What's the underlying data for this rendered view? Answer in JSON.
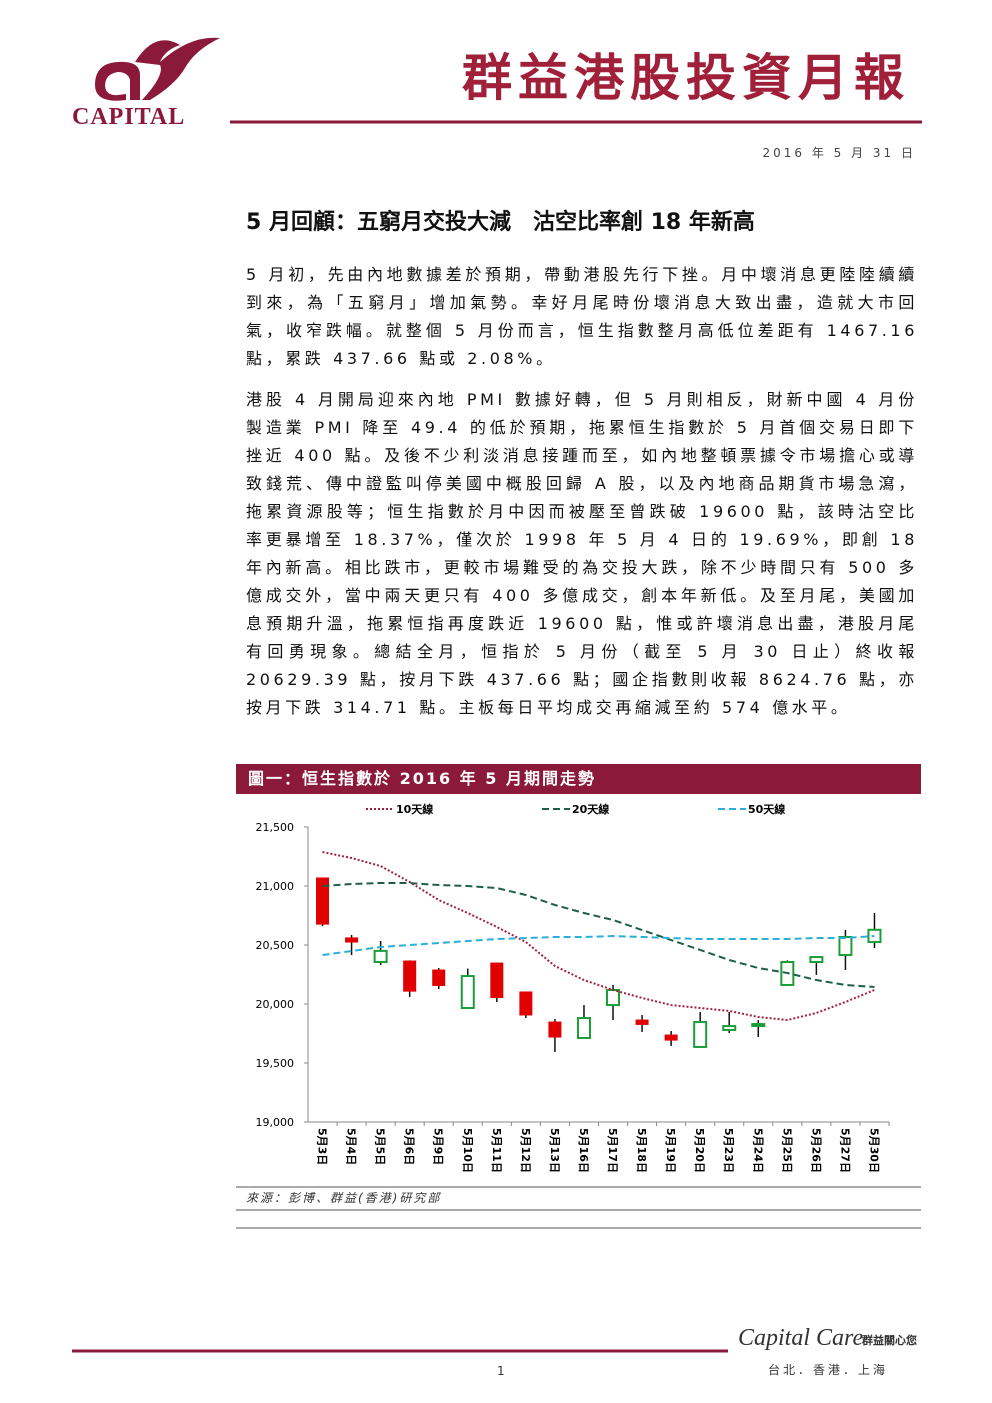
{
  "header": {
    "brand": "CAPITAL",
    "title": "群益港股投資月報",
    "date": "2016 年 5 月 31 日"
  },
  "article": {
    "title": "5 月回顧：五窮月交投大減　沽空比率創 18 年新高",
    "paragraphs": [
      "5 月初，先由內地數據差於預期，帶動港股先行下挫。月中壞消息更陸陸續續到來，為「五窮月」增加氣勢。幸好月尾時份壞消息大致出盡，造就大市回氣，收窄跌幅。就整個 5 月份而言，恒生指數整月高低位差距有 1467.16 點，累跌 437.66 點或 2.08%。",
      "港股 4 月開局迎來內地 PMI 數據好轉，但 5 月則相反，財新中國 4 月份製造業 PMI 降至 49.4 的低於預期，拖累恒生指數於 5 月首個交易日即下挫近 400 點。及後不少利淡消息接踵而至，如內地整頓票據令市場擔心或導致錢荒、傳中證監叫停美國中概股回歸 A 股，以及內地商品期貨市場急瀉，拖累資源股等；恒生指數於月中因而被壓至曾跌破 19600 點，該時沽空比率更暴增至 18.37%，僅次於 1998 年 5 月 4 日的 19.69%，即創 18 年內新高。相比跌市，更較市場難受的為交投大跌，除不少時間只有 500 多億成交外，當中兩天更只有 400 多億成交，創本年新低。及至月尾，美國加息預期升溫，拖累恒指再度跌近 19600 點，惟或許壞消息出盡，港股月尾有回勇現象。總結全月，恒指於 5 月份（截至 5 月 30 日止）終收報 20629.39 點，按月下跌 437.66 點；國企指數則收報 8624.76 點，亦按月下跌 314.71 點。主板每日平均成交再縮減至約 574 億水平。"
    ]
  },
  "chart_data": {
    "type": "candlestick",
    "title": "圖一：恒生指數於 2016 年 5 月期間走勢",
    "categories": [
      "5月3日",
      "5月4日",
      "5月5日",
      "5月6日",
      "5月9日",
      "5月10日",
      "5月11日",
      "5月12日",
      "5月13日",
      "5月16日",
      "5月17日",
      "5月18日",
      "5月19日",
      "5月20日",
      "5月23日",
      "5月24日",
      "5月25日",
      "5月26日",
      "5月27日",
      "5月30日"
    ],
    "open": [
      21068,
      20560,
      20356,
      20364,
      20288,
      19966,
      20347,
      20102,
      19847,
      19712,
      19991,
      19864,
      19737,
      19636,
      19780,
      19822,
      20161,
      20356,
      20415,
      20525
    ],
    "high": [
      21070,
      20585,
      20534,
      20370,
      20305,
      20300,
      20350,
      20105,
      19873,
      19991,
      20161,
      19907,
      19771,
      19932,
      19932,
      19864,
      20370,
      20400,
      20627,
      20771
    ],
    "low": [
      20660,
      20415,
      20330,
      20060,
      20127,
      19960,
      20017,
      19881,
      19593,
      19710,
      19864,
      19763,
      19644,
      19630,
      19754,
      19720,
      20155,
      20246,
      20288,
      20474
    ],
    "close": [
      20677,
      20525,
      20450,
      20109,
      20157,
      20237,
      20055,
      19907,
      19720,
      19881,
      20119,
      19827,
      19694,
      19847,
      19813,
      19830,
      20356,
      20398,
      20568,
      20629
    ],
    "up_color": "#1a9e3a",
    "down_color": "#e00000",
    "series": [
      {
        "name": "10天線",
        "color": "#a0203a",
        "style": "dotted",
        "values": [
          21288,
          21237,
          21169,
          21034,
          20881,
          20771,
          20653,
          20525,
          20322,
          20203,
          20119,
          20051,
          19991,
          19966,
          19941,
          19890,
          19864,
          19924,
          20017,
          20119
        ]
      },
      {
        "name": "20天線",
        "color": "#1f5f4a",
        "style": "dashed",
        "values": [
          21000,
          21017,
          21025,
          21025,
          21008,
          21000,
          20983,
          20924,
          20839,
          20771,
          20712,
          20627,
          20542,
          20458,
          20373,
          20305,
          20263,
          20203,
          20161,
          20144
        ]
      },
      {
        "name": "50天線",
        "color": "#2ab0d8",
        "style": "dashed",
        "values": [
          20415,
          20449,
          20483,
          20500,
          20517,
          20534,
          20551,
          20559,
          20568,
          20568,
          20576,
          20568,
          20559,
          20551,
          20551,
          20551,
          20551,
          20559,
          20559,
          20576
        ]
      }
    ],
    "ylim": [
      19000,
      21500
    ],
    "yticks": [
      {
        "value": 19000,
        "label": "19,000"
      },
      {
        "value": 19500,
        "label": "19,500"
      },
      {
        "value": 20000,
        "label": "20,000"
      },
      {
        "value": 20500,
        "label": "20,500"
      },
      {
        "value": 21000,
        "label": "21,000"
      },
      {
        "value": 21500,
        "label": "21,500"
      }
    ],
    "grid": false
  },
  "source": "來源：彭博、群益(香港)研究部",
  "footer": {
    "brand": "Capital Care",
    "slogan": "群益關心您",
    "cities": "台北．香港．上海",
    "page": "1"
  }
}
